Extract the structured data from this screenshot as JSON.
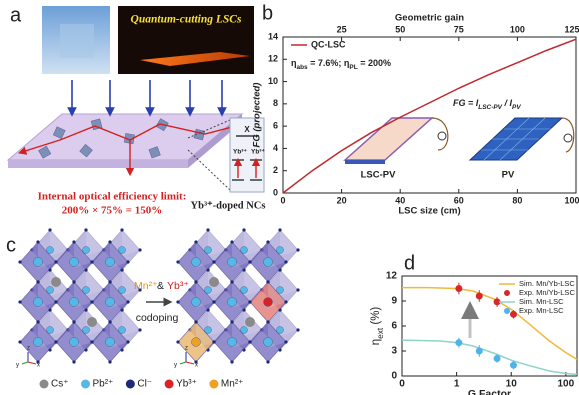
{
  "panel_a": {
    "label": "a",
    "title": "Quantum-cutting LSCs",
    "limit_title": "Internal optical efficiency limit:",
    "limit_value": "200% × 75% = 150%",
    "nc_label": "Yb³⁺-doped NCs",
    "ion_labels": [
      "Yb³⁺",
      "Yb³⁺"
    ],
    "state_label": "X"
  },
  "panel_c": {
    "label": "c",
    "dopants": [
      "Mn²⁺",
      "&",
      "Yb³⁺"
    ],
    "process": "codoping",
    "axes": [
      "z",
      "y",
      "x"
    ],
    "legend": [
      {
        "name": "Cs⁺",
        "color": "#8a8a8a"
      },
      {
        "name": "Pb²⁺",
        "color": "#56b8e6"
      },
      {
        "name": "Cl⁻",
        "color": "#1c2a7a"
      },
      {
        "name": "Yb³⁺",
        "color": "#d8222a"
      },
      {
        "name": "Mn²⁺",
        "color": "#f0a020"
      }
    ]
  },
  "chart_data": [
    {
      "panel_label": "b",
      "type": "line",
      "xlabel": "LSC size (cm)",
      "ylabel": "FG (projected)",
      "x2label": "Geometric gain",
      "x": [
        0,
        10,
        20,
        30,
        40,
        50,
        60,
        70,
        80,
        90,
        100
      ],
      "series": [
        {
          "name": "QC-LSC",
          "color": "#c0282d",
          "kind": "line",
          "values": [
            0,
            2.0,
            3.8,
            5.4,
            6.8,
            8.1,
            9.4,
            10.6,
            11.7,
            12.8,
            13.8
          ]
        }
      ],
      "xlim": [
        0,
        100
      ],
      "xticks": [
        0,
        20,
        40,
        60,
        80,
        100
      ],
      "x2lim": [
        0,
        125
      ],
      "x2ticks": [
        25,
        50,
        75,
        100,
        125
      ],
      "ylim": [
        0,
        14
      ],
      "yticks": [
        0,
        2,
        4,
        6,
        8,
        10,
        12,
        14
      ],
      "legend": "upper left",
      "annotation": [
        {
          "text": "η"
        },
        {
          "text": "abs",
          "sub": true
        },
        {
          "text": " = 7.6%; η"
        },
        {
          "text": "PL",
          "sub": true
        },
        {
          "text": " = 200%"
        }
      ],
      "formula": [
        {
          "text": "FG = I"
        },
        {
          "text": "LSC-PV",
          "sub": true
        },
        {
          "text": " / I"
        },
        {
          "text": "PV",
          "sub": true
        }
      ],
      "inset_labels": [
        "LSC-PV",
        "PV"
      ]
    },
    {
      "panel_label": "d",
      "type": "line",
      "xlabel": "G Factor",
      "ylabel": [
        {
          "text": "η"
        },
        {
          "text": "ext",
          "sub": true
        },
        {
          "text": " (%)"
        }
      ],
      "xscale": "log",
      "xlim": [
        0.1,
        160
      ],
      "xticks": [
        {
          "value": 0.1,
          "label": "0"
        },
        1,
        10,
        100
      ],
      "ylim": [
        0,
        12
      ],
      "yticks": [
        0,
        3,
        6,
        9,
        12
      ],
      "legend": "upper right",
      "series": [
        {
          "name": "Sim. Mn/Yb-LSC",
          "color": "#f2b83a",
          "kind": "line",
          "x": [
            0.1,
            0.3,
            1,
            2,
            5,
            10,
            20,
            50,
            100,
            160
          ],
          "values": [
            10.6,
            10.6,
            10.5,
            10.2,
            9.2,
            8.0,
            6.4,
            4.2,
            2.8,
            2.0
          ]
        },
        {
          "name": "Exp. Mn/Yb-LSC",
          "color": "#d42a2a",
          "kind": "scatter",
          "x": [
            1.1,
            2.6,
            5.5,
            11
          ],
          "values": [
            10.5,
            9.6,
            8.9,
            7.4
          ],
          "errors": [
            0.7,
            0.7,
            0.6,
            0.5
          ]
        },
        {
          "name": "Sim. Mn-LSC",
          "color": "#8fd3c8",
          "kind": "line",
          "x": [
            0.1,
            0.5,
            1,
            2,
            5,
            10,
            20,
            50,
            100,
            160
          ],
          "values": [
            4.3,
            4.2,
            4.0,
            3.6,
            2.7,
            1.9,
            1.3,
            0.6,
            0.3,
            0.2
          ]
        },
        {
          "name": "Exp. Mn-LSC",
          "color": "#4fb2e8",
          "kind": "scatter",
          "x": [
            1.1,
            2.6,
            5.5,
            11
          ],
          "values": [
            4.0,
            3.0,
            2.1,
            1.3
          ],
          "errors": [
            0.6,
            0.7,
            0.5,
            0.5
          ]
        }
      ]
    }
  ]
}
